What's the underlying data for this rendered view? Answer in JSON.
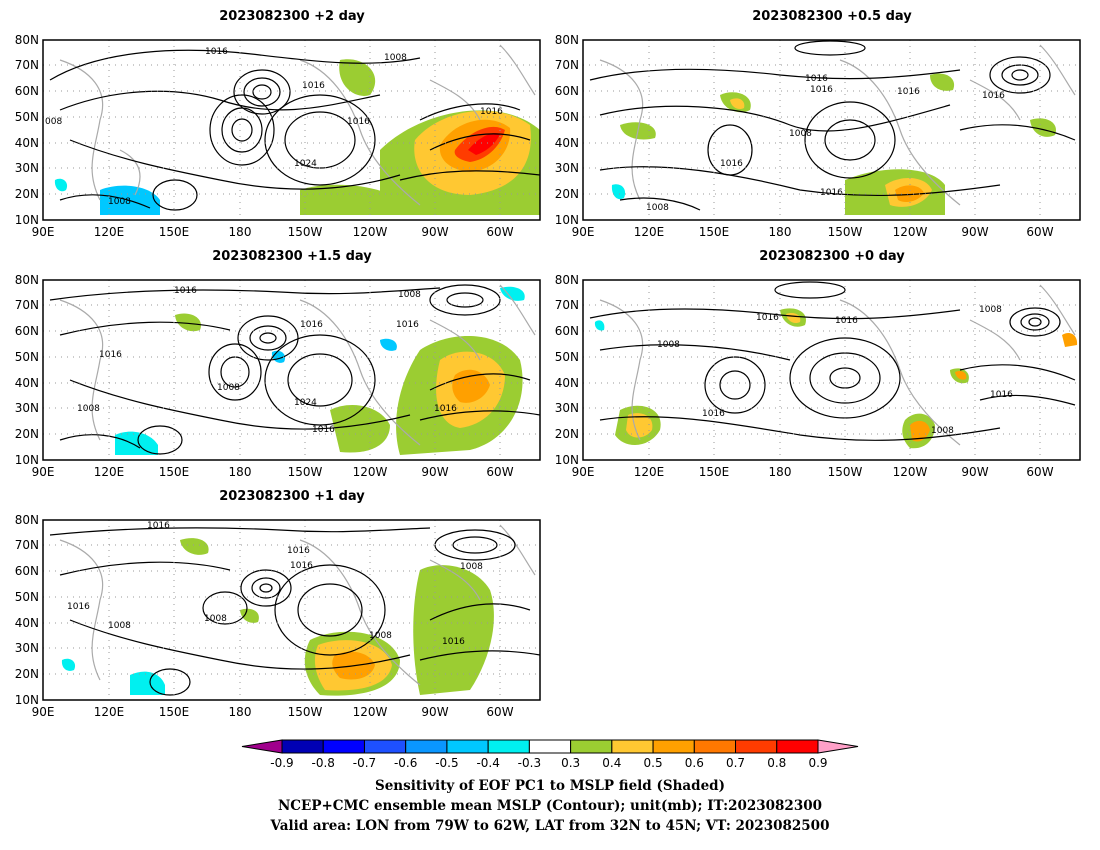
{
  "panels": [
    {
      "id": "p1",
      "title": "2023082300 +2 day",
      "contour_labels": [
        "1016",
        "1008",
        "1016",
        "1016",
        "1016",
        "008",
        "1024",
        "1008"
      ]
    },
    {
      "id": "p2",
      "title": "2023082300 +0.5 day",
      "contour_labels": [
        "1016",
        "1016",
        "1016",
        "1016",
        "1008",
        "1016",
        "1016",
        "1008"
      ]
    },
    {
      "id": "p3",
      "title": "2023082300 +1.5 day",
      "contour_labels": [
        "1016",
        "1008",
        "1016",
        "1016",
        "1016",
        "1008",
        "1008",
        "1024",
        "1016",
        "1016"
      ]
    },
    {
      "id": "p4",
      "title": "2023082300 +0 day",
      "contour_labels": [
        "1016",
        "1016",
        "1008",
        "1008",
        "1016",
        "1016",
        "1008"
      ]
    },
    {
      "id": "p5",
      "title": "2023082300 +1 day",
      "contour_labels": [
        "1016",
        "1016",
        "1016",
        "1008",
        "1016",
        "1008",
        "1008",
        "1008",
        "1016"
      ]
    }
  ],
  "axes": {
    "lon_ticks": [
      "90E",
      "120E",
      "150E",
      "180",
      "150W",
      "120W",
      "90W",
      "60W"
    ],
    "lat_ticks": [
      "10N",
      "20N",
      "30N",
      "40N",
      "50N",
      "60N",
      "70N",
      "80N"
    ]
  },
  "colorbar": {
    "labels": [
      "-0.9",
      "-0.8",
      "-0.7",
      "-0.6",
      "-0.5",
      "-0.4",
      "-0.3",
      "0.3",
      "0.4",
      "0.5",
      "0.6",
      "0.7",
      "0.8",
      "0.9"
    ],
    "colors": [
      "#a0008c",
      "#0000b4",
      "#0000ff",
      "#1e50ff",
      "#0a96ff",
      "#00c8ff",
      "#00f0f0",
      "#ffffff",
      "#9bcd32",
      "#ffc832",
      "#ffa000",
      "#ff7800",
      "#ff3c00",
      "#ff0000",
      "#ffa0c8"
    ]
  },
  "caption": [
    "Sensitivity of EOF PC1 to MSLP field (Shaded)",
    "NCEP+CMC ensemble mean MSLP (Contour); unit(mb); IT:2023082300",
    "Valid area: LON from 79W to 62W, LAT from 32N to 45N; VT: 2023082500"
  ]
}
